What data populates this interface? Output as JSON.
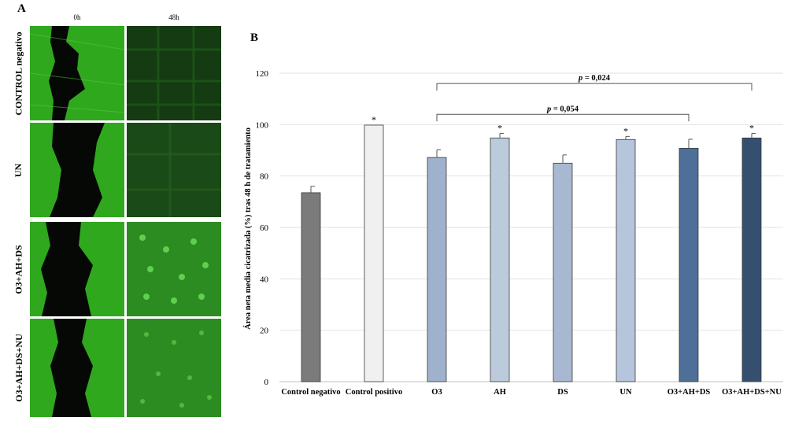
{
  "panel_a": {
    "label": "A",
    "columns": [
      "0h",
      "48h"
    ],
    "rows": [
      "CONTROL negativo",
      "UN",
      "O3+AH+DS",
      "O3+AH+DS+NU"
    ]
  },
  "panel_b": {
    "label": "B"
  },
  "chart_data": {
    "type": "bar",
    "title": "",
    "xlabel": "",
    "ylabel": "Área neta media cicatrizada (%) tras 48 h de tratamiento",
    "ylim": [
      0,
      120
    ],
    "yticks": [
      "0",
      "20",
      "40",
      "60",
      "80",
      "100",
      "120"
    ],
    "grid": true,
    "categories": [
      "Control negativo",
      "Control positivo",
      "O3",
      "AH",
      "DS",
      "UN",
      "O3+AH+DS",
      "O3+AH+DS+NU"
    ],
    "values": [
      73.5,
      99.8,
      87.2,
      94.8,
      85.0,
      94.2,
      90.8,
      94.8
    ],
    "errors": [
      2.5,
      0,
      3.0,
      1.8,
      3.2,
      1.2,
      3.5,
      1.8
    ],
    "significance": [
      "",
      "*",
      "",
      "*",
      "",
      "*",
      "",
      "*"
    ],
    "bar_colors": [
      "#7b7b7b",
      "#f0f0f0",
      "#9fb1cc",
      "#bccbdc",
      "#a7b8d0",
      "#b4c5dc",
      "#4d6f98",
      "#35506f"
    ],
    "annotations": [
      {
        "from": "O3",
        "to": "O3+AH+DS+NU",
        "text": "p = 0,024",
        "y": 116
      },
      {
        "from": "O3",
        "to": "O3+AH+DS",
        "text": "p = 0,054",
        "y": 104
      }
    ]
  }
}
